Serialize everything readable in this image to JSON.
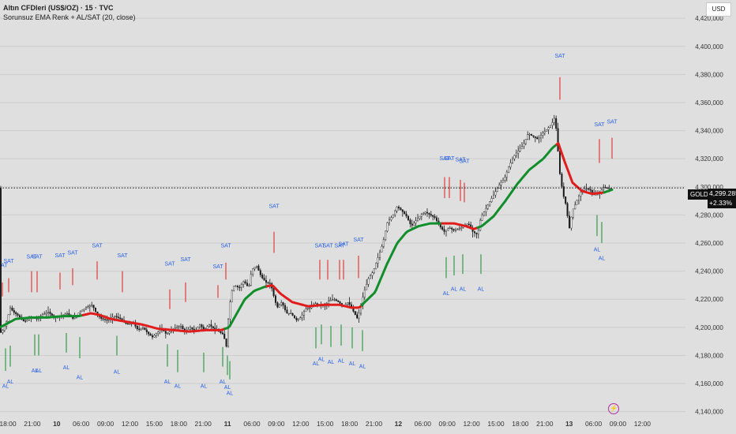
{
  "header": {
    "instrument": "Altın CFDleri (US$/OZ) · 15 · TVC",
    "indicator": "Sorunsuz EMA Renk + AL/SAT (20, close)"
  },
  "currency_button": "USD",
  "symbol_tag": "GOLD",
  "last_price": "4,299.285",
  "change": "+2.33%",
  "icons": {
    "bolt": "lightning-icon"
  },
  "colors": {
    "background": "#dfdfdf",
    "grid": "#cdcdcd",
    "candle": "#1a1a1a",
    "ema_up": "#118e2c",
    "ema_down": "#e01c1c",
    "signal_text": "#2a62e8",
    "buy_line": "#118e2c",
    "sell_line": "#e01c1c"
  },
  "chart_data": {
    "type": "line",
    "title": "Altın CFDleri (US$/OZ) · 15 · TVC",
    "ylim": [
      4137000,
      4433000
    ],
    "y_ticks": [
      4140000,
      4160000,
      4180000,
      4200000,
      4220000,
      4240000,
      4260000,
      4280000,
      4300000,
      4320000,
      4340000,
      4360000,
      4380000,
      4400000,
      4420000
    ],
    "y_tick_labels": [
      "4,140,000",
      "4,160,000",
      "4,180,000",
      "4,200,000",
      "4,220,000",
      "4,240,000",
      "4,260,000",
      "4,280,000",
      "4,300,000",
      "4,320,000",
      "4,340,000",
      "4,360,000",
      "4,380,000",
      "4,400,000",
      "4,420,000"
    ],
    "x_ticks": [
      {
        "label": "18:00",
        "bold": false
      },
      {
        "label": "21:00",
        "bold": false
      },
      {
        "label": "10",
        "bold": true
      },
      {
        "label": "06:00",
        "bold": false
      },
      {
        "label": "09:00",
        "bold": false
      },
      {
        "label": "12:00",
        "bold": false
      },
      {
        "label": "15:00",
        "bold": false
      },
      {
        "label": "18:00",
        "bold": false
      },
      {
        "label": "21:00",
        "bold": false
      },
      {
        "label": "11",
        "bold": true
      },
      {
        "label": "06:00",
        "bold": false
      },
      {
        "label": "09:00",
        "bold": false
      },
      {
        "label": "12:00",
        "bold": false
      },
      {
        "label": "15:00",
        "bold": false
      },
      {
        "label": "18:00",
        "bold": false
      },
      {
        "label": "21:00",
        "bold": false
      },
      {
        "label": "12",
        "bold": true
      },
      {
        "label": "06:00",
        "bold": false
      },
      {
        "label": "09:00",
        "bold": false
      },
      {
        "label": "12:00",
        "bold": false
      },
      {
        "label": "15:00",
        "bold": false
      },
      {
        "label": "18:00",
        "bold": false
      },
      {
        "label": "21:00",
        "bold": false
      },
      {
        "label": "13",
        "bold": true
      },
      {
        "label": "06:00",
        "bold": false
      },
      {
        "label": "09:00",
        "bold": false
      },
      {
        "label": "12:00",
        "bold": false
      }
    ],
    "price_path": [
      [
        0,
        4195000
      ],
      [
        5,
        4198000
      ],
      [
        10,
        4205000
      ],
      [
        14,
        4214000
      ],
      [
        18,
        4211000
      ],
      [
        25,
        4208000
      ],
      [
        32,
        4204000
      ],
      [
        40,
        4207000
      ],
      [
        48,
        4206000
      ],
      [
        55,
        4209000
      ],
      [
        62,
        4211000
      ],
      [
        70,
        4207000
      ],
      [
        78,
        4208000
      ],
      [
        86,
        4210000
      ],
      [
        94,
        4206000
      ],
      [
        102,
        4211000
      ],
      [
        110,
        4214000
      ],
      [
        118,
        4216000
      ],
      [
        124,
        4209000
      ],
      [
        130,
        4206000
      ],
      [
        138,
        4205000
      ],
      [
        146,
        4208000
      ],
      [
        154,
        4206000
      ],
      [
        162,
        4202000
      ],
      [
        170,
        4203000
      ],
      [
        176,
        4198000
      ],
      [
        182,
        4200000
      ],
      [
        188,
        4196000
      ],
      [
        194,
        4193000
      ],
      [
        200,
        4196000
      ],
      [
        206,
        4199000
      ],
      [
        212,
        4195000
      ],
      [
        218,
        4198000
      ],
      [
        224,
        4200000
      ],
      [
        230,
        4201000
      ],
      [
        236,
        4196000
      ],
      [
        242,
        4200000
      ],
      [
        248,
        4197000
      ],
      [
        254,
        4202000
      ],
      [
        260,
        4198000
      ],
      [
        266,
        4202000
      ],
      [
        272,
        4199000
      ],
      [
        278,
        4197000
      ],
      [
        284,
        4195000
      ],
      [
        288,
        4186000
      ],
      [
        290,
        4205000
      ],
      [
        294,
        4225000
      ],
      [
        298,
        4230000
      ],
      [
        304,
        4228000
      ],
      [
        310,
        4233000
      ],
      [
        316,
        4228000
      ],
      [
        320,
        4241000
      ],
      [
        326,
        4244000
      ],
      [
        332,
        4236000
      ],
      [
        338,
        4232000
      ],
      [
        344,
        4231000
      ],
      [
        348,
        4222000
      ],
      [
        352,
        4214000
      ],
      [
        358,
        4218000
      ],
      [
        364,
        4210000
      ],
      [
        370,
        4210000
      ],
      [
        376,
        4205000
      ],
      [
        382,
        4207000
      ],
      [
        388,
        4213000
      ],
      [
        394,
        4214000
      ],
      [
        400,
        4217000
      ],
      [
        406,
        4216000
      ],
      [
        412,
        4215000
      ],
      [
        418,
        4219000
      ],
      [
        424,
        4220000
      ],
      [
        430,
        4218000
      ],
      [
        436,
        4215000
      ],
      [
        442,
        4218000
      ],
      [
        448,
        4212000
      ],
      [
        454,
        4206000
      ],
      [
        458,
        4215000
      ],
      [
        462,
        4225000
      ],
      [
        468,
        4235000
      ],
      [
        474,
        4240000
      ],
      [
        480,
        4250000
      ],
      [
        486,
        4260000
      ],
      [
        492,
        4275000
      ],
      [
        498,
        4279000
      ],
      [
        504,
        4286000
      ],
      [
        510,
        4283000
      ],
      [
        516,
        4279000
      ],
      [
        522,
        4272000
      ],
      [
        528,
        4276000
      ],
      [
        534,
        4280000
      ],
      [
        540,
        4282000
      ],
      [
        546,
        4280000
      ],
      [
        552,
        4278000
      ],
      [
        558,
        4272000
      ],
      [
        564,
        4268000
      ],
      [
        570,
        4271000
      ],
      [
        576,
        4269000
      ],
      [
        582,
        4270000
      ],
      [
        588,
        4272000
      ],
      [
        594,
        4274000
      ],
      [
        600,
        4268000
      ],
      [
        606,
        4266000
      ],
      [
        610,
        4278000
      ],
      [
        616,
        4284000
      ],
      [
        622,
        4290000
      ],
      [
        628,
        4296000
      ],
      [
        634,
        4302000
      ],
      [
        640,
        4306000
      ],
      [
        646,
        4315000
      ],
      [
        652,
        4322000
      ],
      [
        658,
        4326000
      ],
      [
        664,
        4330000
      ],
      [
        670,
        4338000
      ],
      [
        676,
        4336000
      ],
      [
        682,
        4334000
      ],
      [
        688,
        4338000
      ],
      [
        694,
        4341000
      ],
      [
        700,
        4345000
      ],
      [
        704,
        4350000
      ],
      [
        706,
        4338000
      ],
      [
        710,
        4310000
      ],
      [
        714,
        4295000
      ],
      [
        718,
        4287000
      ],
      [
        722,
        4270000
      ],
      [
        726,
        4283000
      ],
      [
        730,
        4288000
      ],
      [
        736,
        4296000
      ],
      [
        742,
        4299000
      ],
      [
        748,
        4298000
      ],
      [
        754,
        4294000
      ],
      [
        760,
        4296000
      ],
      [
        766,
        4300000
      ],
      [
        770,
        4299000
      ],
      [
        775,
        4299000
      ]
    ],
    "ema": [
      [
        0,
        4200000
      ],
      [
        20,
        4206000
      ],
      [
        40,
        4207000
      ],
      [
        60,
        4207000
      ],
      [
        80,
        4208000
      ],
      [
        100,
        4208000
      ],
      [
        115,
        4210000
      ],
      [
        125,
        4209000
      ],
      [
        140,
        4206000
      ],
      [
        160,
        4204000
      ],
      [
        180,
        4202000
      ],
      [
        200,
        4199000
      ],
      [
        220,
        4198000
      ],
      [
        240,
        4197000
      ],
      [
        260,
        4198000
      ],
      [
        280,
        4198000
      ],
      [
        290,
        4200000
      ],
      [
        300,
        4210000
      ],
      [
        310,
        4220000
      ],
      [
        322,
        4226000
      ],
      [
        336,
        4229000
      ],
      [
        345,
        4230000
      ],
      [
        355,
        4224000
      ],
      [
        370,
        4218000
      ],
      [
        390,
        4215000
      ],
      [
        410,
        4216000
      ],
      [
        430,
        4216000
      ],
      [
        445,
        4214000
      ],
      [
        455,
        4214000
      ],
      [
        462,
        4218000
      ],
      [
        475,
        4225000
      ],
      [
        490,
        4245000
      ],
      [
        503,
        4260000
      ],
      [
        515,
        4268000
      ],
      [
        530,
        4272000
      ],
      [
        545,
        4274000
      ],
      [
        560,
        4274000
      ],
      [
        575,
        4274000
      ],
      [
        590,
        4272000
      ],
      [
        600,
        4270000
      ],
      [
        610,
        4272000
      ],
      [
        625,
        4279000
      ],
      [
        640,
        4290000
      ],
      [
        655,
        4302000
      ],
      [
        670,
        4312000
      ],
      [
        688,
        4320000
      ],
      [
        700,
        4328000
      ],
      [
        707,
        4331000
      ],
      [
        715,
        4318000
      ],
      [
        725,
        4303000
      ],
      [
        737,
        4297000
      ],
      [
        750,
        4295000
      ],
      [
        765,
        4296000
      ],
      [
        775,
        4298000
      ]
    ],
    "ema_segments": [
      {
        "from": 0,
        "to": 105,
        "trend": "up"
      },
      {
        "from": 105,
        "to": 285,
        "trend": "down"
      },
      {
        "from": 285,
        "to": 338,
        "trend": "up"
      },
      {
        "from": 338,
        "to": 458,
        "trend": "down"
      },
      {
        "from": 458,
        "to": 560,
        "trend": "up"
      },
      {
        "from": 560,
        "to": 605,
        "trend": "down"
      },
      {
        "from": 605,
        "to": 705,
        "trend": "up"
      },
      {
        "from": 705,
        "to": 765,
        "trend": "down"
      },
      {
        "from": 765,
        "to": 775,
        "trend": "up"
      }
    ],
    "sell_signals": [
      {
        "x": 3,
        "label": "SAT",
        "label_y": 4243000,
        "line": [
          4222000,
          4232000
        ]
      },
      {
        "x": 11,
        "label": "SAT",
        "label_y": 4246000,
        "line": [
          4225000,
          4235000
        ]
      },
      {
        "x": 40,
        "label": "SAT",
        "label_y": 4249000,
        "line": [
          4225000,
          4240000
        ]
      },
      {
        "x": 47,
        "label": "SAT",
        "label_y": 4249000,
        "line": [
          4225000,
          4240000
        ]
      },
      {
        "x": 76,
        "label": "SAT",
        "label_y": 4250000,
        "line": [
          4227000,
          4239000
        ]
      },
      {
        "x": 92,
        "label": "SAT",
        "label_y": 4252000,
        "line": [
          4230000,
          4242000
        ]
      },
      {
        "x": 123,
        "label": "SAT",
        "label_y": 4257000,
        "line": [
          4234000,
          4247000
        ]
      },
      {
        "x": 155,
        "label": "SAT",
        "label_y": 4250000,
        "line": [
          4225000,
          4240000
        ]
      },
      {
        "x": 215,
        "label": "SAT",
        "label_y": 4244000,
        "line": [
          4213000,
          4227000
        ]
      },
      {
        "x": 235,
        "label": "SAT",
        "label_y": 4247000,
        "line": [
          4218000,
          4232000
        ]
      },
      {
        "x": 276,
        "label": "SAT",
        "label_y": 4242000,
        "line": [
          4221000,
          4230000
        ]
      },
      {
        "x": 286,
        "label": "SAT",
        "label_y": 4257000,
        "line": [
          4234000,
          4246000
        ]
      },
      {
        "x": 347,
        "label": "SAT",
        "label_y": 4285000,
        "line": [
          4253000,
          4268000
        ]
      },
      {
        "x": 405,
        "label": "SAT",
        "label_y": 4257000,
        "line": [
          4234000,
          4248000
        ]
      },
      {
        "x": 415,
        "label": "SAT",
        "label_y": 4257000,
        "line": [
          4234000,
          4248000
        ]
      },
      {
        "x": 430,
        "label": "SAT",
        "label_y": 4257000,
        "line": [
          4234000,
          4248000
        ]
      },
      {
        "x": 435,
        "label": "SAT",
        "label_y": 4258000,
        "line": [
          4234000,
          4248000
        ]
      },
      {
        "x": 454,
        "label": "SAT",
        "label_y": 4261000,
        "line": [
          4235000,
          4251000
        ]
      },
      {
        "x": 563,
        "label": "SAT",
        "label_y": 4319000,
        "line": [
          4292000,
          4307000
        ]
      },
      {
        "x": 569,
        "label": "SAT",
        "label_y": 4319000,
        "line": [
          4292000,
          4307000
        ]
      },
      {
        "x": 583,
        "label": "SAT",
        "label_y": 4318000,
        "line": [
          4290000,
          4305000
        ]
      },
      {
        "x": 588,
        "label": "SAT",
        "label_y": 4317000,
        "line": [
          4289000,
          4303000
        ]
      },
      {
        "x": 709,
        "label": "SAT",
        "label_y": 4392000,
        "line": [
          4362000,
          4378000
        ]
      },
      {
        "x": 759,
        "label": "SAT",
        "label_y": 4343000,
        "line": [
          4317000,
          4334000
        ]
      },
      {
        "x": 775,
        "label": "SAT",
        "label_y": 4345000,
        "line": [
          4320000,
          4335000
        ]
      }
    ],
    "buy_signals": [
      {
        "x": 7,
        "label": "AL",
        "label_y": 4157000,
        "line": [
          4169000,
          4185000
        ]
      },
      {
        "x": 13,
        "label": "AL",
        "label_y": 4160000,
        "line": [
          4172000,
          4187000
        ]
      },
      {
        "x": 44,
        "label": "AL",
        "label_y": 4168000,
        "line": [
          4180000,
          4195000
        ]
      },
      {
        "x": 49,
        "label": "AL",
        "label_y": 4168000,
        "line": [
          4180000,
          4195000
        ]
      },
      {
        "x": 84,
        "label": "AL",
        "label_y": 4170000,
        "line": [
          4182000,
          4196000
        ]
      },
      {
        "x": 101,
        "label": "AL",
        "label_y": 4163000,
        "line": [
          4178000,
          4193000
        ]
      },
      {
        "x": 148,
        "label": "AL",
        "label_y": 4167000,
        "line": [
          4180000,
          4194000
        ]
      },
      {
        "x": 212,
        "label": "AL",
        "label_y": 4160000,
        "line": [
          4172000,
          4188000
        ]
      },
      {
        "x": 225,
        "label": "AL",
        "label_y": 4157000,
        "line": [
          4168000,
          4184000
        ]
      },
      {
        "x": 258,
        "label": "AL",
        "label_y": 4157000,
        "line": [
          4168000,
          4182000
        ]
      },
      {
        "x": 282,
        "label": "AL",
        "label_y": 4160000,
        "line": [
          4172000,
          4186000
        ]
      },
      {
        "x": 288,
        "label": "AL",
        "label_y": 4156000,
        "line": [
          4166000,
          4180000
        ]
      },
      {
        "x": 291,
        "label": "AL",
        "label_y": 4152000,
        "line": [
          4163000,
          4176000
        ]
      },
      {
        "x": 400,
        "label": "AL",
        "label_y": 4173000,
        "line": [
          4185000,
          4200000
        ]
      },
      {
        "x": 407,
        "label": "AL",
        "label_y": 4176000,
        "line": [
          4188000,
          4202000
        ]
      },
      {
        "x": 419,
        "label": "AL",
        "label_y": 4174000,
        "line": [
          4186000,
          4201000
        ]
      },
      {
        "x": 432,
        "label": "AL",
        "label_y": 4175000,
        "line": [
          4187000,
          4202000
        ]
      },
      {
        "x": 446,
        "label": "AL",
        "label_y": 4173000,
        "line": [
          4185000,
          4200000
        ]
      },
      {
        "x": 459,
        "label": "AL",
        "label_y": 4171000,
        "line": [
          4183000,
          4198000
        ]
      },
      {
        "x": 565,
        "label": "AL",
        "label_y": 4223000,
        "line": [
          4235000,
          4250000
        ]
      },
      {
        "x": 575,
        "label": "AL",
        "label_y": 4226000,
        "line": [
          4237000,
          4251000
        ]
      },
      {
        "x": 586,
        "label": "AL",
        "label_y": 4226000,
        "line": [
          4238000,
          4252000
        ]
      },
      {
        "x": 609,
        "label": "AL",
        "label_y": 4226000,
        "line": [
          4238000,
          4252000
        ]
      },
      {
        "x": 756,
        "label": "AL",
        "label_y": 4254000,
        "line": [
          4265000,
          4280000
        ]
      },
      {
        "x": 762,
        "label": "AL",
        "label_y": 4248000,
        "line": [
          4260000,
          4275000
        ]
      }
    ]
  }
}
